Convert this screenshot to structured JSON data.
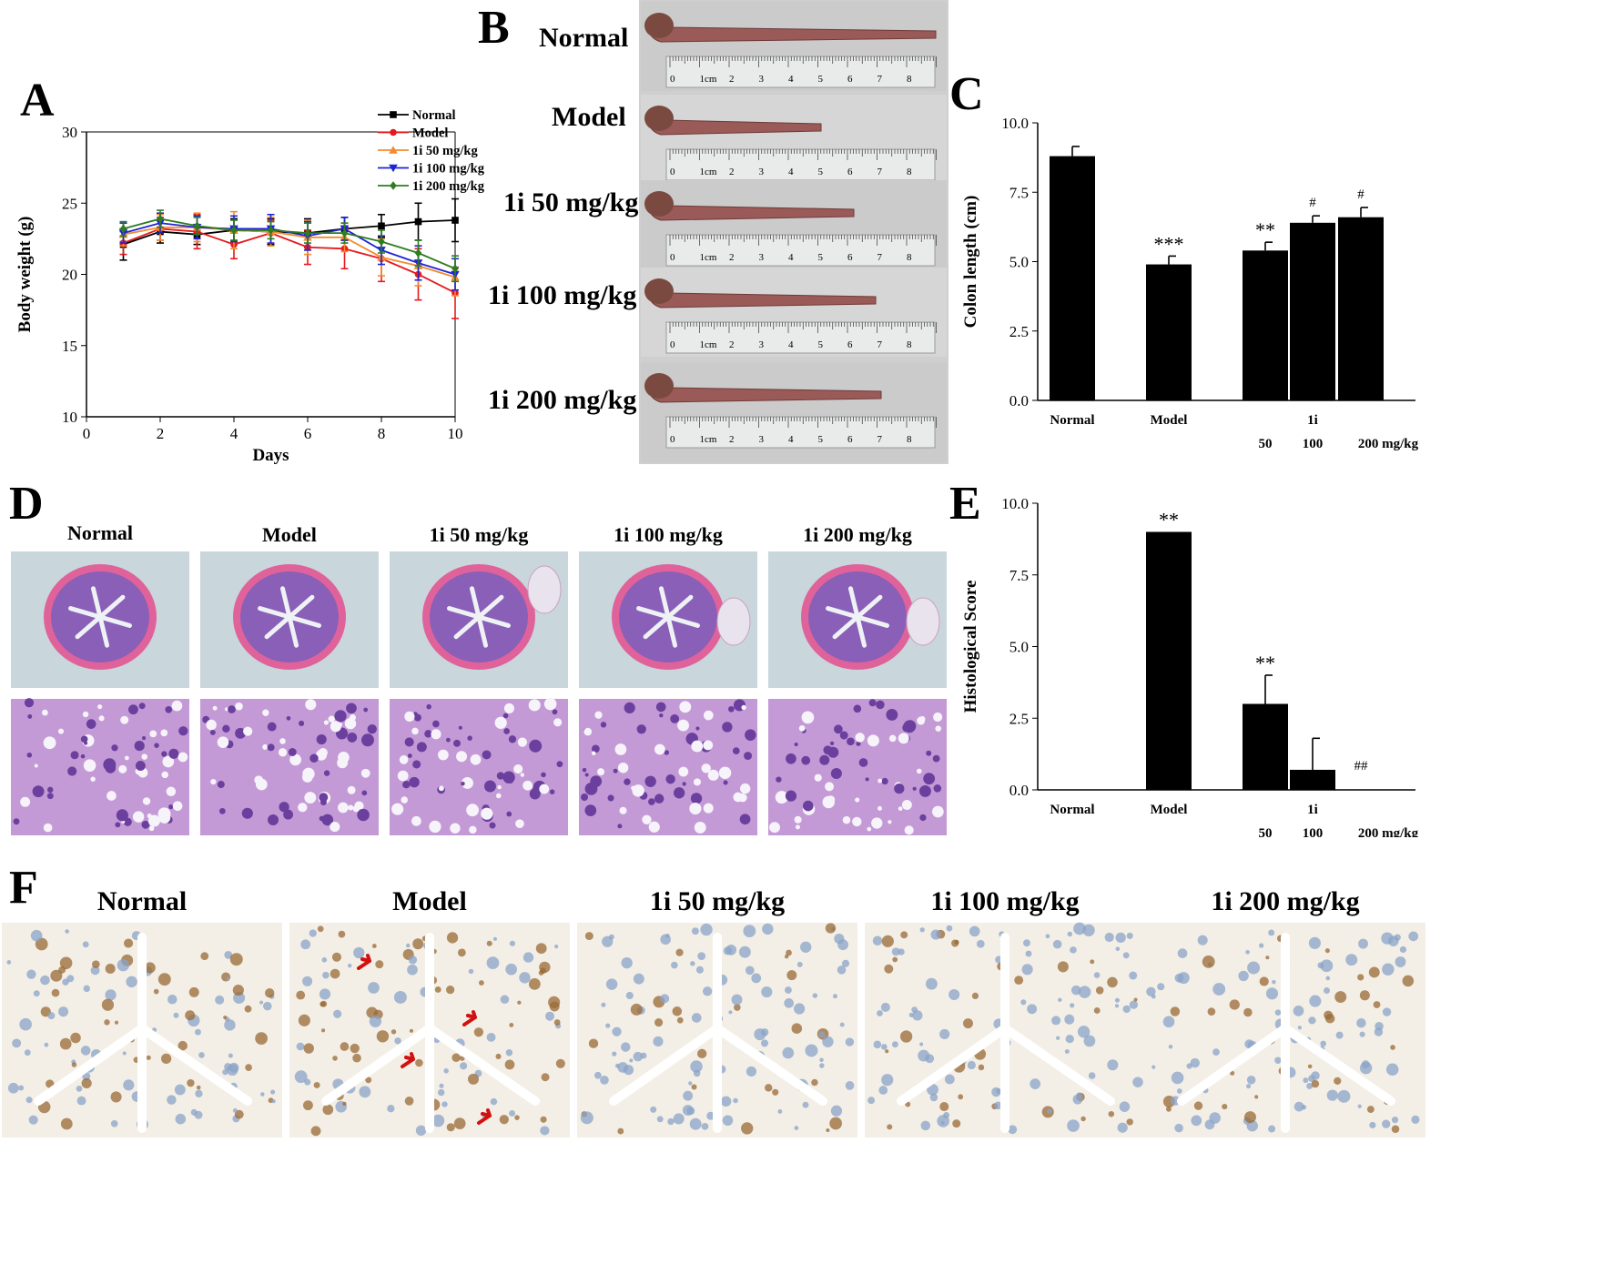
{
  "panels": {
    "A": "A",
    "B": "B",
    "C": "C",
    "D": "D",
    "E": "E",
    "F": "F"
  },
  "groups": [
    "Normal",
    "Model",
    "1i 50 mg/kg",
    "1i 100 mg/kg",
    "1i 200 mg/kg"
  ],
  "ruler": {
    "zero": "0",
    "one": "1cm",
    "ticks": [
      "2",
      "3",
      "4",
      "5",
      "6",
      "7",
      "8"
    ]
  },
  "colors": {
    "normal": "#000000",
    "model": "#e41a1c",
    "d50": "#f28b30",
    "d100": "#1f24d6",
    "d200": "#2e7d1f",
    "he_bg": "#c9d6dc",
    "he_pink": "#e0629a",
    "he_purple": "#8a5fb8",
    "ihc_bg": "#f3efe6",
    "ihc_brown": "#9a6a35",
    "ihc_blue": "#8aa3c8",
    "tissue_bg": "#cfcfcf",
    "tissue": "#9a5a58",
    "arrow": "#d21010"
  },
  "chart_data": [
    {
      "id": "A",
      "type": "line",
      "xlabel": "Days",
      "ylabel": "Body weight (g)",
      "xlim": [
        0,
        10
      ],
      "ylim": [
        10,
        30
      ],
      "xticks": [
        "0",
        "2",
        "4",
        "6",
        "8",
        "10"
      ],
      "yticks": [
        "10",
        "15",
        "20",
        "25",
        "30"
      ],
      "legend_position": "top-right",
      "x": [
        1,
        2,
        3,
        4,
        5,
        6,
        7,
        8,
        9,
        10
      ],
      "series": [
        {
          "name": "Normal",
          "marker": "square",
          "color": "#000000",
          "values": [
            22.1,
            23.0,
            22.8,
            23.1,
            23.0,
            22.9,
            23.2,
            23.4,
            23.7,
            23.8
          ],
          "error": [
            1.1,
            0.8,
            0.7,
            0.8,
            0.9,
            1.0,
            0.8,
            0.8,
            1.3,
            1.5
          ]
        },
        {
          "name": "Model",
          "marker": "circle",
          "color": "#e41a1c",
          "values": [
            22.2,
            23.2,
            23.0,
            22.1,
            22.9,
            21.9,
            21.8,
            21.1,
            20.0,
            18.7
          ],
          "error": [
            0.8,
            0.8,
            1.2,
            1.0,
            0.9,
            1.2,
            1.4,
            1.6,
            1.8,
            1.8
          ]
        },
        {
          "name": "1i 50 mg/kg",
          "marker": "triangle-up",
          "color": "#f28b30",
          "values": [
            22.8,
            23.3,
            23.3,
            23.1,
            23.0,
            22.6,
            22.6,
            21.2,
            20.6,
            19.8
          ],
          "error": [
            0.8,
            0.9,
            1.0,
            1.3,
            1.0,
            1.2,
            1.0,
            1.3,
            1.4,
            1.3
          ]
        },
        {
          "name": "1i 100 mg/kg",
          "marker": "triangle-down",
          "color": "#1f24d6",
          "values": [
            22.9,
            23.6,
            23.3,
            23.2,
            23.2,
            22.7,
            23.2,
            21.7,
            20.8,
            20.0
          ],
          "error": [
            0.7,
            0.7,
            0.8,
            0.9,
            1.0,
            1.0,
            0.8,
            1.0,
            1.2,
            1.1
          ]
        },
        {
          "name": "1i 200 mg/kg",
          "marker": "diamond",
          "color": "#2e7d1f",
          "values": [
            23.2,
            23.9,
            23.4,
            23.1,
            23.1,
            22.9,
            22.9,
            22.3,
            21.5,
            20.4
          ],
          "error": [
            0.5,
            0.6,
            0.6,
            0.7,
            0.6,
            0.7,
            0.7,
            0.8,
            0.9,
            0.9
          ]
        }
      ]
    },
    {
      "id": "C",
      "type": "bar",
      "ylabel": "Colon length (cm)",
      "ylim": [
        0,
        10
      ],
      "yticks": [
        "0.0",
        "2.5",
        "5.0",
        "7.5",
        "10.0"
      ],
      "categories": [
        "Normal",
        "Model",
        "50",
        "100",
        "200 mg/kg"
      ],
      "group_label": "1i",
      "values": [
        8.8,
        4.9,
        5.4,
        6.4,
        6.6
      ],
      "error": [
        0.35,
        0.3,
        0.3,
        0.25,
        0.35
      ],
      "annotations": [
        "",
        "***",
        "**",
        "#",
        "#"
      ]
    },
    {
      "id": "E",
      "type": "bar",
      "ylabel": "Histological Score",
      "ylim": [
        0,
        10
      ],
      "yticks": [
        "0.0",
        "2.5",
        "5.0",
        "7.5",
        "10.0"
      ],
      "categories": [
        "Normal",
        "Model",
        "50",
        "100",
        "200 mg/kg"
      ],
      "group_label": "1i",
      "values": [
        0,
        9.0,
        3.0,
        0.7,
        0
      ],
      "error": [
        0,
        0,
        1.0,
        1.1,
        0
      ],
      "annotations": [
        "",
        "**",
        "**",
        "",
        "##"
      ]
    }
  ]
}
